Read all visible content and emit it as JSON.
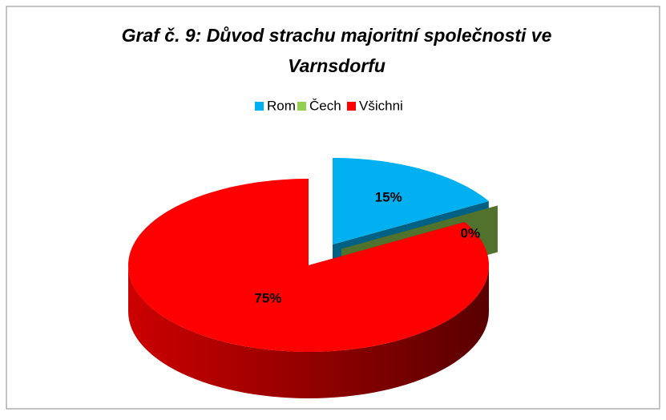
{
  "chart_data": {
    "type": "pie",
    "title": [
      "Graf č. 9: Důvod strachu majoritní společnosti ve",
      "Varnsdorfu"
    ],
    "categories": [
      "Rom",
      "Čech",
      "Všichni"
    ],
    "values": [
      15,
      0,
      75
    ],
    "value_labels": [
      "15%",
      "0%",
      "75%"
    ],
    "colors": [
      "#00b0f0",
      "#92d050",
      "#ff0000"
    ],
    "legend": "top",
    "three_d": true
  }
}
